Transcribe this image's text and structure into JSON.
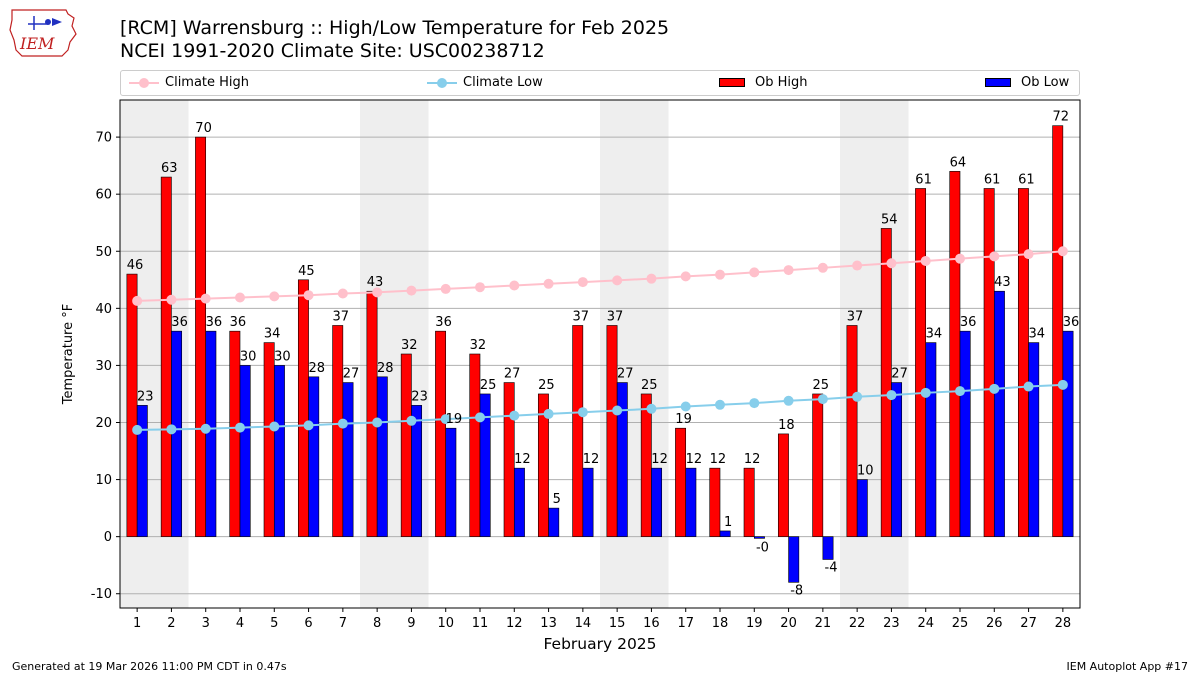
{
  "header": {
    "logo_text": "IEM",
    "title_line1": "[RCM] Warrensburg :: High/Low Temperature for Feb 2025",
    "title_line2": "NCEI 1991-2020 Climate Site: USC00238712"
  },
  "legend": {
    "placement": "top",
    "items": [
      {
        "label": "Climate High",
        "color": "#ffc0cb",
        "style": "line-marker"
      },
      {
        "label": "Climate Low",
        "color": "#87ceeb",
        "style": "line-marker"
      },
      {
        "label": "Ob High",
        "color": "#ff0000",
        "style": "bar"
      },
      {
        "label": "Ob Low",
        "color": "#0000ff",
        "style": "bar"
      }
    ]
  },
  "chart_data": {
    "type": "bar",
    "title": "[RCM] Warrensburg :: High/Low Temperature for Feb 2025",
    "subtitle": "NCEI 1991-2020 Climate Site: USC00238712",
    "xlabel": "February 2025",
    "ylabel": "Temperature °F",
    "ylim": [
      -12.5,
      76.5
    ],
    "yticks": [
      -10,
      0,
      10,
      20,
      30,
      40,
      50,
      60,
      70
    ],
    "grid": "horizontal",
    "categories": [
      "1",
      "2",
      "3",
      "4",
      "5",
      "6",
      "7",
      "8",
      "9",
      "10",
      "11",
      "12",
      "13",
      "14",
      "15",
      "16",
      "17",
      "18",
      "19",
      "20",
      "21",
      "22",
      "23",
      "24",
      "25",
      "26",
      "27",
      "28"
    ],
    "weekend_shading": [
      [
        1,
        2
      ],
      [
        8,
        9
      ],
      [
        15,
        16
      ],
      [
        22,
        23
      ]
    ],
    "series": [
      {
        "name": "Ob High",
        "kind": "bar",
        "color": "#ff0000",
        "values": [
          46,
          63,
          70,
          36,
          34,
          45,
          37,
          43,
          32,
          36,
          32,
          27,
          25,
          37,
          37,
          25,
          19,
          12,
          12,
          18,
          25,
          37,
          54,
          61,
          64,
          61,
          61,
          72
        ],
        "labels": [
          "46",
          "63",
          "70",
          "36",
          "34",
          "45",
          "37",
          "43",
          "32",
          "36",
          "32",
          "27",
          "25",
          "37",
          "37",
          "25",
          "19",
          "12",
          "12",
          "18",
          "25",
          "37",
          "54",
          "61",
          "64",
          "61",
          "61",
          "72"
        ]
      },
      {
        "name": "Ob Low",
        "kind": "bar",
        "color": "#0000ff",
        "values": [
          23,
          36,
          36,
          30,
          30,
          28,
          27,
          28,
          23,
          19,
          25,
          12,
          5,
          12,
          27,
          12,
          12,
          1,
          -0.3,
          -8,
          -4,
          10,
          27,
          34,
          36,
          43,
          34,
          36
        ],
        "labels": [
          "23",
          "36",
          "36",
          "30",
          "30",
          "28",
          "27",
          "28",
          "23",
          "19",
          "25",
          "12",
          "5",
          "12",
          "27",
          "12",
          "12",
          "1",
          "-0",
          "-8",
          "-4",
          "10",
          "27",
          "34",
          "36",
          "43",
          "34",
          "36"
        ]
      },
      {
        "name": "Climate High",
        "kind": "line",
        "color": "#ffc0cb",
        "values": [
          41.3,
          41.5,
          41.7,
          41.9,
          42.1,
          42.3,
          42.6,
          42.8,
          43.1,
          43.4,
          43.7,
          44.0,
          44.3,
          44.6,
          44.9,
          45.2,
          45.6,
          45.9,
          46.3,
          46.7,
          47.1,
          47.5,
          47.9,
          48.3,
          48.7,
          49.1,
          49.5,
          50.0
        ]
      },
      {
        "name": "Climate Low",
        "kind": "line",
        "color": "#87ceeb",
        "values": [
          18.7,
          18.8,
          18.9,
          19.1,
          19.3,
          19.5,
          19.8,
          20.0,
          20.3,
          20.6,
          20.9,
          21.2,
          21.5,
          21.8,
          22.1,
          22.4,
          22.8,
          23.1,
          23.4,
          23.8,
          24.1,
          24.5,
          24.8,
          25.2,
          25.5,
          25.9,
          26.3,
          26.6
        ]
      }
    ]
  },
  "footer": {
    "generated": "Generated at 19 Mar 2026 11:00 PM CDT in 0.47s",
    "app": "IEM Autoplot App #17"
  }
}
